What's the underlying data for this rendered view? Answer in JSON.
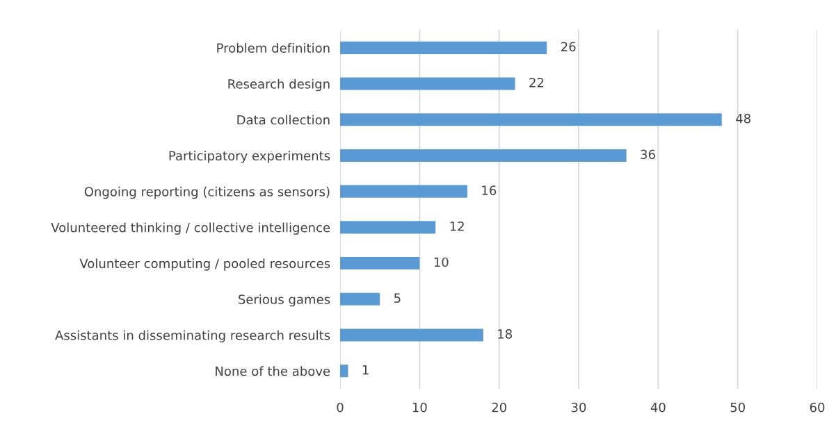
{
  "chart_data": {
    "type": "bar",
    "orientation": "horizontal",
    "categories": [
      "Problem definition",
      "Research design",
      "Data collection",
      "Participatory experiments",
      "Ongoing reporting (citizens as sensors)",
      "Volunteered thinking / collective intelligence",
      "Volunteer computing / pooled resources",
      "Serious games",
      "Assistants in disseminating research results",
      "None of the above"
    ],
    "values": [
      26,
      22,
      48,
      36,
      16,
      12,
      10,
      5,
      18,
      1
    ],
    "color": "#5b9bd5",
    "xlim": [
      0,
      60
    ],
    "xticks": [
      0,
      10,
      20,
      30,
      40,
      50,
      60
    ],
    "grid": "x",
    "data_labels": true
  }
}
